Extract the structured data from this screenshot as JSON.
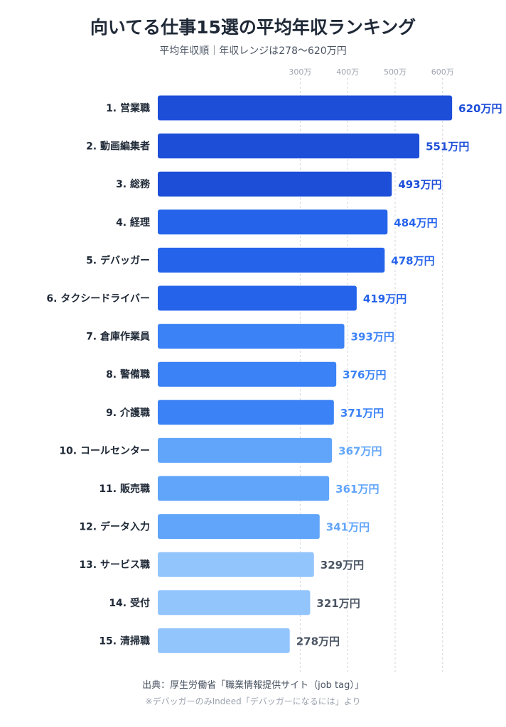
{
  "chart_data": {
    "type": "bar",
    "orientation": "horizontal",
    "title": "向いてる仕事15選の平均年収ランキング",
    "subtitle": "平均年収順｜年収レンジは278〜620万円",
    "categories": [
      "1. 営業職",
      "2. 動画編集者",
      "3. 総務",
      "4. 経理",
      "5. デバッガー",
      "6. タクシードライバー",
      "7. 倉庫作業員",
      "8. 警備職",
      "9. 介護職",
      "10. コールセンター",
      "11. 販売職",
      "12. データ入力",
      "13. サービス職",
      "14. 受付",
      "15. 清掃職"
    ],
    "values": [
      620,
      551,
      493,
      484,
      478,
      419,
      393,
      376,
      371,
      367,
      361,
      341,
      329,
      321,
      278
    ],
    "value_labels": [
      "620万円",
      "551万円",
      "493万円",
      "484万円",
      "478万円",
      "419万円",
      "393万円",
      "376万円",
      "371万円",
      "367万円",
      "361万円",
      "341万円",
      "329万円",
      "321万円",
      "278万円"
    ],
    "x_ticks": [
      300,
      400,
      500,
      600
    ],
    "x_tick_labels": [
      "300万",
      "400万",
      "500万",
      "600万"
    ],
    "xlim": [
      0,
      640
    ],
    "grid": true,
    "legend": "none",
    "bar_colors": [
      "#1d4ed8",
      "#1d4ed8",
      "#1d4ed8",
      "#2563eb",
      "#2563eb",
      "#2563eb",
      "#3b82f6",
      "#3b82f6",
      "#3b82f6",
      "#60a5fa",
      "#60a5fa",
      "#60a5fa",
      "#93c5fd",
      "#93c5fd",
      "#93c5fd"
    ],
    "label_colors": [
      "#1d4ed8",
      "#1d4ed8",
      "#1d4ed8",
      "#2563eb",
      "#2563eb",
      "#2563eb",
      "#3b82f6",
      "#3b82f6",
      "#3b82f6",
      "#60a5fa",
      "#60a5fa",
      "#60a5fa",
      "#4b5563",
      "#4b5563",
      "#4b5563"
    ],
    "source": "出典：厚生労働省「職業情報提供サイト（job tag）」",
    "note": "※デバッガーのみIndeed「デバッガーになるには」より"
  }
}
